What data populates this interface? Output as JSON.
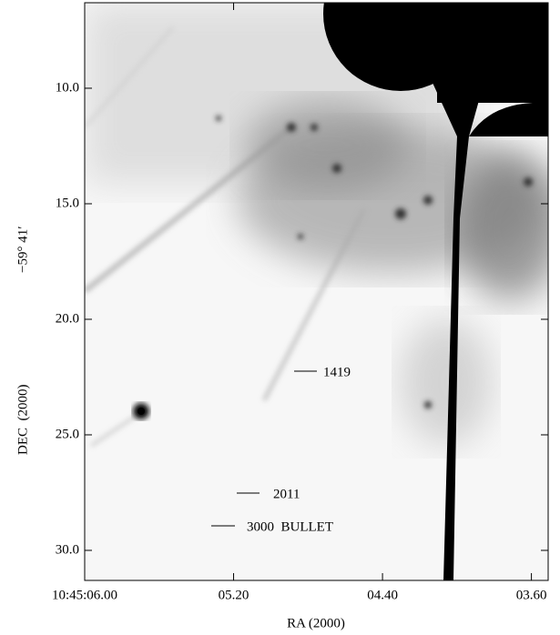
{
  "chart_data": {
    "type": "image",
    "xlabel": "RA (2000)",
    "ylabel": "DEC  (2000)",
    "ylabel_offset": "−59° 41′",
    "xlim": [
      6.0,
      3.51
    ],
    "xticks": [
      {
        "value": 6.0,
        "label": "10:45:06.00"
      },
      {
        "value": 5.2,
        "label": "05.20"
      },
      {
        "value": 4.4,
        "label": "04.40"
      },
      {
        "value": 3.6,
        "label": "03.60"
      }
    ],
    "ylim": [
      6.3,
      31.3
    ],
    "yticks": [
      {
        "value": 10.0,
        "label": "10.0"
      },
      {
        "value": 15.0,
        "label": "15.0"
      },
      {
        "value": 20.0,
        "label": "20.0"
      },
      {
        "value": 25.0,
        "label": "25.0"
      },
      {
        "value": 30.0,
        "label": "30.0"
      }
    ],
    "annotations": [
      "1419",
      "2011",
      "3000  BULLET"
    ]
  }
}
